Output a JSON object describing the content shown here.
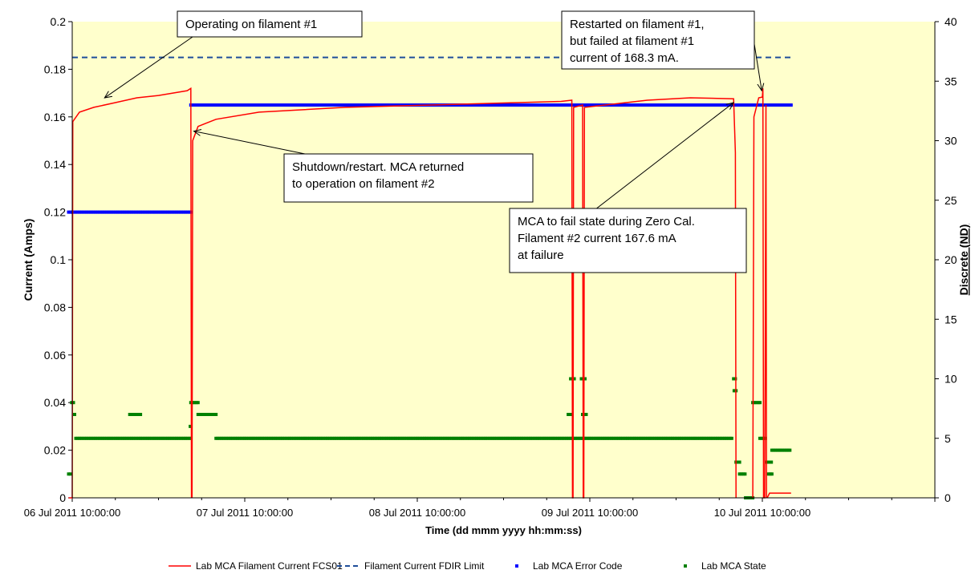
{
  "chart_data": {
    "type": "line",
    "xlabel": "Time (dd mmm yyyy hh:mm:ss)",
    "ylabel_left": "Current (Amps)",
    "ylabel_right": "Discrete (ND)",
    "x_range": [
      "2011-07-06 10:00:00",
      "2011-07-11 10:00:00"
    ],
    "x_ticks": [
      {
        "t": "2011-07-06 10:00:00",
        "label": "06 Jul 2011 10:00:00"
      },
      {
        "t": "2011-07-07 10:00:00",
        "label": "07 Jul 2011 10:00:00"
      },
      {
        "t": "2011-07-08 10:00:00",
        "label": "08 Jul 2011 10:00:00"
      },
      {
        "t": "2011-07-09 10:00:00",
        "label": "09 Jul 2011 10:00:00"
      },
      {
        "t": "2011-07-10 10:00:00",
        "label": "10 Jul 2011 10:00:00"
      },
      {
        "t": "2011-07-11 10:00:00",
        "label": ""
      }
    ],
    "ylim_left": [
      0,
      0.2
    ],
    "yticks_left": [
      "0",
      "0.02",
      "0.04",
      "0.06",
      "0.08",
      "0.1",
      "0.12",
      "0.14",
      "0.16",
      "0.18",
      "0.2"
    ],
    "ylim_right": [
      0,
      40
    ],
    "yticks_right": [
      "0",
      "5",
      "10",
      "15",
      "20",
      "25",
      "30",
      "35",
      "40"
    ],
    "grid": false,
    "plot_background": "#ffffcc",
    "legend_position": "bottom",
    "series": [
      {
        "name": "Lab MCA Filament Current FCS01",
        "axis": "left",
        "style": "line",
        "color": "#ff0000",
        "segments": [
          [
            [
              "2011-07-06 09:30:00",
              0.0
            ],
            [
              "2011-07-06 10:00:00",
              0.0
            ],
            [
              "2011-07-06 10:05:00",
              0.158
            ],
            [
              "2011-07-06 11:00:00",
              0.162
            ],
            [
              "2011-07-06 13:00:00",
              0.164
            ],
            [
              "2011-07-06 16:00:00",
              0.166
            ],
            [
              "2011-07-06 19:00:00",
              0.168
            ],
            [
              "2011-07-06 22:00:00",
              0.169
            ],
            [
              "2011-07-07 02:00:00",
              0.171
            ],
            [
              "2011-07-07 02:30:00",
              0.172
            ],
            [
              "2011-07-07 02:35:00",
              0.0
            ]
          ],
          [
            [
              "2011-07-07 02:40:00",
              0.0
            ],
            [
              "2011-07-07 02:45:00",
              0.15
            ],
            [
              "2011-07-07 03:30:00",
              0.156
            ],
            [
              "2011-07-07 06:00:00",
              0.159
            ],
            [
              "2011-07-07 12:00:00",
              0.162
            ],
            [
              "2011-07-08 00:00:00",
              0.164
            ],
            [
              "2011-07-08 12:00:00",
              0.165
            ],
            [
              "2011-07-09 00:00:00",
              0.166
            ],
            [
              "2011-07-09 06:00:00",
              0.1665
            ],
            [
              "2011-07-09 07:30:00",
              0.167
            ],
            [
              "2011-07-09 07:35:00",
              0.0
            ],
            [
              "2011-07-09 07:40:00",
              0.0
            ],
            [
              "2011-07-09 07:45:00",
              0.164
            ],
            [
              "2011-07-09 09:00:00",
              0.165
            ],
            [
              "2011-07-09 09:05:00",
              0.0
            ],
            [
              "2011-07-09 09:10:00",
              0.0
            ],
            [
              "2011-07-09 09:15:00",
              0.164
            ],
            [
              "2011-07-09 18:00:00",
              0.167
            ],
            [
              "2011-07-10 00:00:00",
              0.168
            ],
            [
              "2011-07-10 06:00:00",
              0.1676
            ],
            [
              "2011-07-10 06:15:00",
              0.145
            ],
            [
              "2011-07-10 06:20:00",
              0.0
            ]
          ],
          [
            [
              "2011-07-10 08:40:00",
              0.0
            ],
            [
              "2011-07-10 08:50:00",
              0.16
            ],
            [
              "2011-07-10 09:30:00",
              0.168
            ],
            [
              "2011-07-10 10:00:00",
              0.1683
            ],
            [
              "2011-07-10 10:05:00",
              0.172
            ],
            [
              "2011-07-10 10:10:00",
              0.0
            ],
            [
              "2011-07-10 10:20:00",
              0.0
            ],
            [
              "2011-07-10 10:30:00",
              0.165
            ],
            [
              "2011-07-10 10:35:00",
              0.0
            ]
          ],
          [
            [
              "2011-07-10 10:40:00",
              0.0
            ],
            [
              "2011-07-10 11:00:00",
              0.002
            ],
            [
              "2011-07-10 14:00:00",
              0.002
            ]
          ]
        ]
      },
      {
        "name": "Filament Current FDIR Limit",
        "axis": "left",
        "style": "dashed",
        "color": "#1f4e9a",
        "points": [
          [
            "2011-07-06 10:00:00",
            0.185
          ],
          [
            "2011-07-10 14:00:00",
            0.185
          ]
        ]
      },
      {
        "name": "Lab MCA Error Code",
        "axis": "right",
        "style": "markers",
        "color": "#0000ff",
        "runs": [
          {
            "from": "2011-07-06 09:30:00",
            "to": "2011-07-07 02:30:00",
            "value": 24
          },
          {
            "from": "2011-07-07 02:30:00",
            "to": "2011-07-10 14:00:00",
            "value": 33
          }
        ]
      },
      {
        "name": "Lab MCA State",
        "axis": "right",
        "style": "markers",
        "color": "#008000",
        "runs": [
          {
            "from": "2011-07-06 09:30:00",
            "to": "2011-07-06 09:50:00",
            "value": 2
          },
          {
            "from": "2011-07-06 09:55:00",
            "to": "2011-07-06 10:20:00",
            "value": 8
          },
          {
            "from": "2011-07-06 10:20:00",
            "to": "2011-07-06 10:30:00",
            "value": 7
          },
          {
            "from": "2011-07-06 10:30:00",
            "to": "2011-07-07 02:30:00",
            "value": 5
          },
          {
            "from": "2011-07-06 18:00:00",
            "to": "2011-07-06 19:30:00",
            "value": 7
          },
          {
            "from": "2011-07-07 02:25:00",
            "to": "2011-07-07 02:30:00",
            "value": 6
          },
          {
            "from": "2011-07-07 02:30:00",
            "to": "2011-07-07 03:30:00",
            "value": 8
          },
          {
            "from": "2011-07-07 03:30:00",
            "to": "2011-07-07 06:00:00",
            "value": 7
          },
          {
            "from": "2011-07-07 06:00:00",
            "to": "2011-07-10 05:50:00",
            "value": 5
          },
          {
            "from": "2011-07-09 07:20:00",
            "to": "2011-07-09 07:50:00",
            "value": 10
          },
          {
            "from": "2011-07-09 07:00:00",
            "to": "2011-07-09 07:40:00",
            "value": 7
          },
          {
            "from": "2011-07-09 08:50:00",
            "to": "2011-07-09 09:20:00",
            "value": 10
          },
          {
            "from": "2011-07-09 09:00:00",
            "to": "2011-07-09 09:40:00",
            "value": 7
          },
          {
            "from": "2011-07-10 06:00:00",
            "to": "2011-07-10 06:15:00",
            "value": 10
          },
          {
            "from": "2011-07-10 06:05:00",
            "to": "2011-07-10 06:25:00",
            "value": 9
          },
          {
            "from": "2011-07-10 06:20:00",
            "to": "2011-07-10 06:50:00",
            "value": 3
          },
          {
            "from": "2011-07-10 06:50:00",
            "to": "2011-07-10 07:40:00",
            "value": 2
          },
          {
            "from": "2011-07-10 07:40:00",
            "to": "2011-07-10 08:40:00",
            "value": 0
          },
          {
            "from": "2011-07-10 08:40:00",
            "to": "2011-07-10 09:40:00",
            "value": 8
          },
          {
            "from": "2011-07-10 09:40:00",
            "to": "2011-07-10 10:30:00",
            "value": 5
          },
          {
            "from": "2011-07-10 10:30:00",
            "to": "2011-07-10 11:20:00",
            "value": 3
          },
          {
            "from": "2011-07-10 10:50:00",
            "to": "2011-07-10 11:30:00",
            "value": 2
          },
          {
            "from": "2011-07-10 11:20:00",
            "to": "2011-07-10 14:00:00",
            "value": 4
          }
        ]
      }
    ],
    "annotations": [
      {
        "lines": [
          "Operating on filament #1"
        ],
        "target": [
          "2011-07-06 14:30:00",
          0.168
        ]
      },
      {
        "lines": [
          "Shutdown/restart.  MCA returned",
          "to operation  on filament #2"
        ],
        "target": [
          "2011-07-07 02:55:00",
          0.154
        ]
      },
      {
        "lines": [
          "MCA to fail state during Zero Cal.",
          "Filament #2 current 167.6 mA",
          "at failure"
        ],
        "target": [
          "2011-07-10 06:00:00",
          0.166
        ]
      },
      {
        "lines": [
          "Restarted on filament #1,",
          "but failed at filament #1",
          "current of  168.3 mA."
        ],
        "target": [
          "2011-07-10 09:55:00",
          0.171
        ]
      }
    ]
  }
}
